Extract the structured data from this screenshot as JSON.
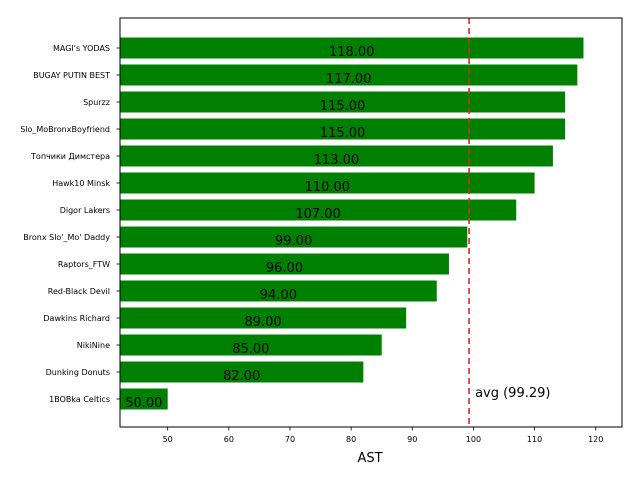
{
  "chart_data": {
    "type": "bar",
    "orientation": "horizontal",
    "title": "",
    "xlabel": "AST",
    "ylabel": "",
    "xlim": [
      42.2,
      124.3
    ],
    "xticks": [
      50,
      60,
      70,
      80,
      90,
      100,
      110,
      120
    ],
    "grid": false,
    "bar_color": "#008000",
    "categories": [
      "MAGI's YODAS",
      "BUGAY PUTIN BEST",
      "Spurzz",
      "Slo_MoBronxBoyfriend",
      "Топчики Димстера",
      "Hawk10 Minsk",
      "Digor Lakers",
      "Bronx Slo'_Mo' Daddy",
      "Raptors_FTW",
      "Red-Black Devil",
      "Dawkins Richard",
      "NikiNine",
      "Dunking Donuts",
      "1BOBka Celtics"
    ],
    "values": [
      118,
      117,
      115,
      115,
      113,
      110,
      107,
      99,
      96,
      94,
      89,
      85,
      82,
      50
    ],
    "value_labels": [
      "118.00",
      "117.00",
      "115.00",
      "115.00",
      "113.00",
      "110.00",
      "107.00",
      "99.00",
      "96.00",
      "94.00",
      "89.00",
      "85.00",
      "82.00",
      "50.00"
    ],
    "average": {
      "value": 99.29,
      "label": "avg (99.29)",
      "color": "#d62728",
      "style": "dashed"
    }
  }
}
